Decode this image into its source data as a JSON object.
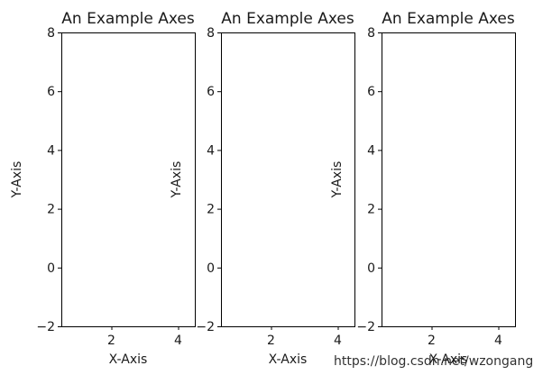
{
  "chart_data": [
    {
      "type": "line",
      "title": "An Example Axes",
      "xlabel": "X-Axis",
      "ylabel": "Y-Axis",
      "xlim": [
        0.5,
        4.5
      ],
      "ylim": [
        -2,
        8
      ],
      "xticks": [
        2,
        4
      ],
      "yticks": [
        -2,
        0,
        2,
        4,
        6,
        8
      ],
      "xtick_labels": [
        "2",
        "4"
      ],
      "ytick_labels": [
        "−2",
        "0",
        "2",
        "4",
        "6",
        "8"
      ],
      "series": [],
      "grid": false
    },
    {
      "type": "line",
      "title": "An Example Axes",
      "xlabel": "X-Axis",
      "ylabel": "Y-Axis",
      "xlim": [
        0.5,
        4.5
      ],
      "ylim": [
        -2,
        8
      ],
      "xticks": [
        2,
        4
      ],
      "yticks": [
        -2,
        0,
        2,
        4,
        6,
        8
      ],
      "xtick_labels": [
        "2",
        "4"
      ],
      "ytick_labels": [
        "−2",
        "0",
        "2",
        "4",
        "6",
        "8"
      ],
      "series": [],
      "grid": false
    },
    {
      "type": "line",
      "title": "An Example Axes",
      "xlabel": "X-Axis",
      "ylabel": "Y-Axis",
      "xlim": [
        0.5,
        4.5
      ],
      "ylim": [
        -2,
        8
      ],
      "xticks": [
        2,
        4
      ],
      "yticks": [
        -2,
        0,
        2,
        4,
        6,
        8
      ],
      "xtick_labels": [
        "2",
        "4"
      ],
      "ytick_labels": [
        "−2",
        "0",
        "2",
        "4",
        "6",
        "8"
      ],
      "series": [],
      "grid": false
    }
  ],
  "watermark": "https://blog.csdn.net/wzongang"
}
